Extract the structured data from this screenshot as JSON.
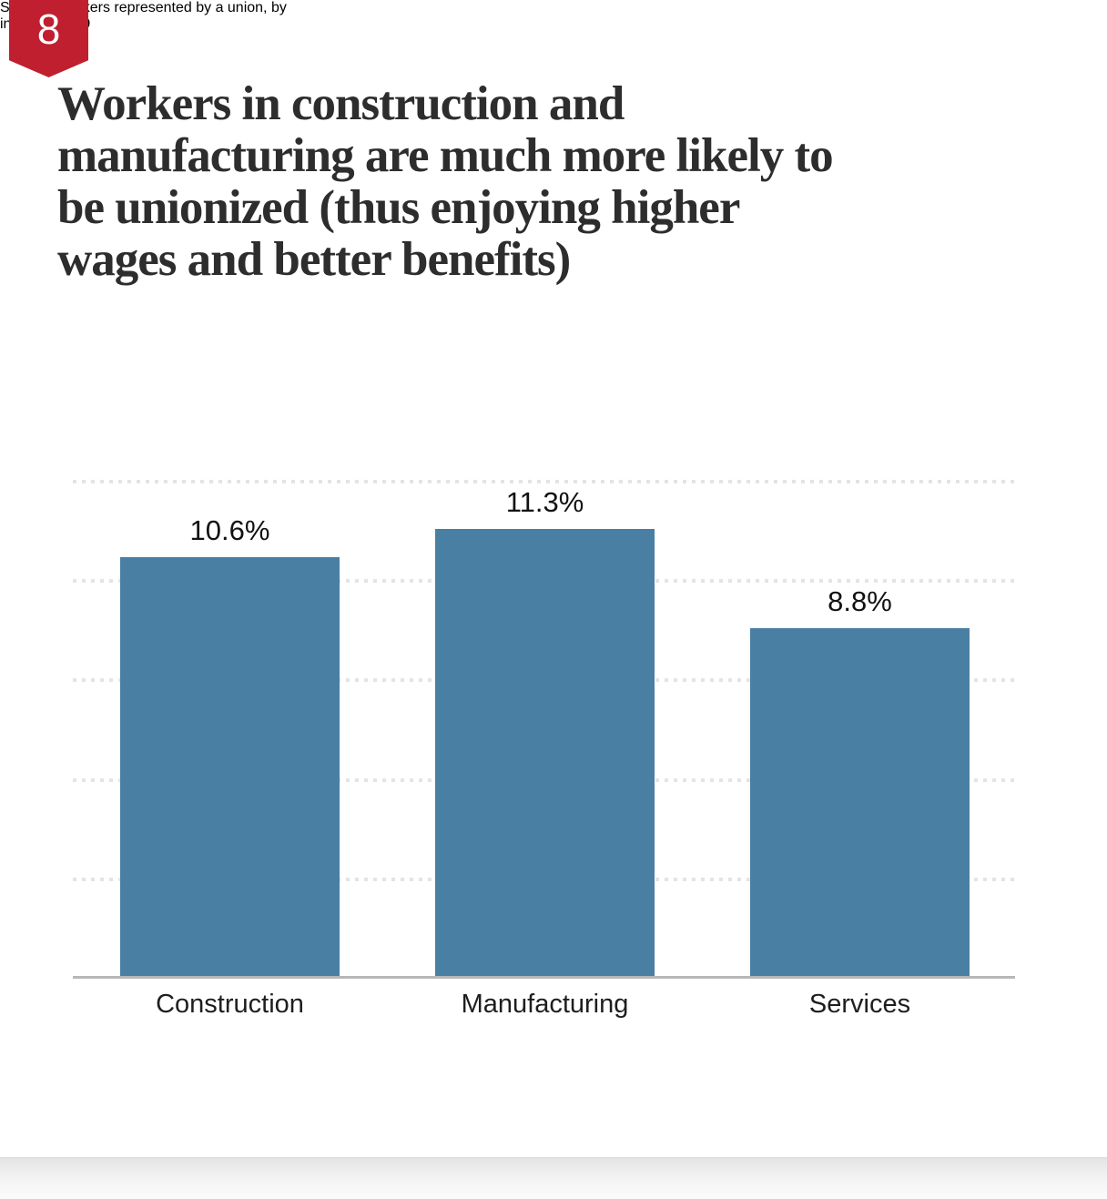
{
  "badge": {
    "number": "8"
  },
  "header": {
    "title_lines": [
      "Workers in construction and",
      "manufacturing are much more likely to",
      "be unionized (thus enjoying higher",
      "wages and better benefits)"
    ],
    "subtitle_lines": [
      "Share of workers represented by a union, by",
      "industry, 2019"
    ]
  },
  "chart_data": {
    "type": "bar",
    "title": "Workers in construction and manufacturing are much more likely to be unionized (thus enjoying higher wages and better benefits)",
    "subtitle": "Share of workers represented by a union, by industry, 2019",
    "categories": [
      "Construction",
      "Manufacturing",
      "Services"
    ],
    "values": [
      10.6,
      11.3,
      8.8
    ],
    "value_labels": [
      "10.6%",
      "11.3%",
      "8.8%"
    ],
    "unit": "percent",
    "xlabel": "",
    "ylabel": "",
    "ylim": [
      0,
      12.5
    ],
    "gridline_values": [
      2.5,
      5,
      7.5,
      10,
      12.5
    ],
    "gridline_style": "dotted",
    "y_axis_tick_labels_visible": false,
    "legend": "none",
    "bar_color": "#4a7fa4"
  },
  "colors": {
    "badge_red": "#bf1f2f",
    "bar_blue": "#4a7fa4",
    "title_text": "#2d2d2d",
    "subtitle_text": "#505050",
    "gridline": "#e4e4e4",
    "axis_line": "#b7b7b7"
  }
}
